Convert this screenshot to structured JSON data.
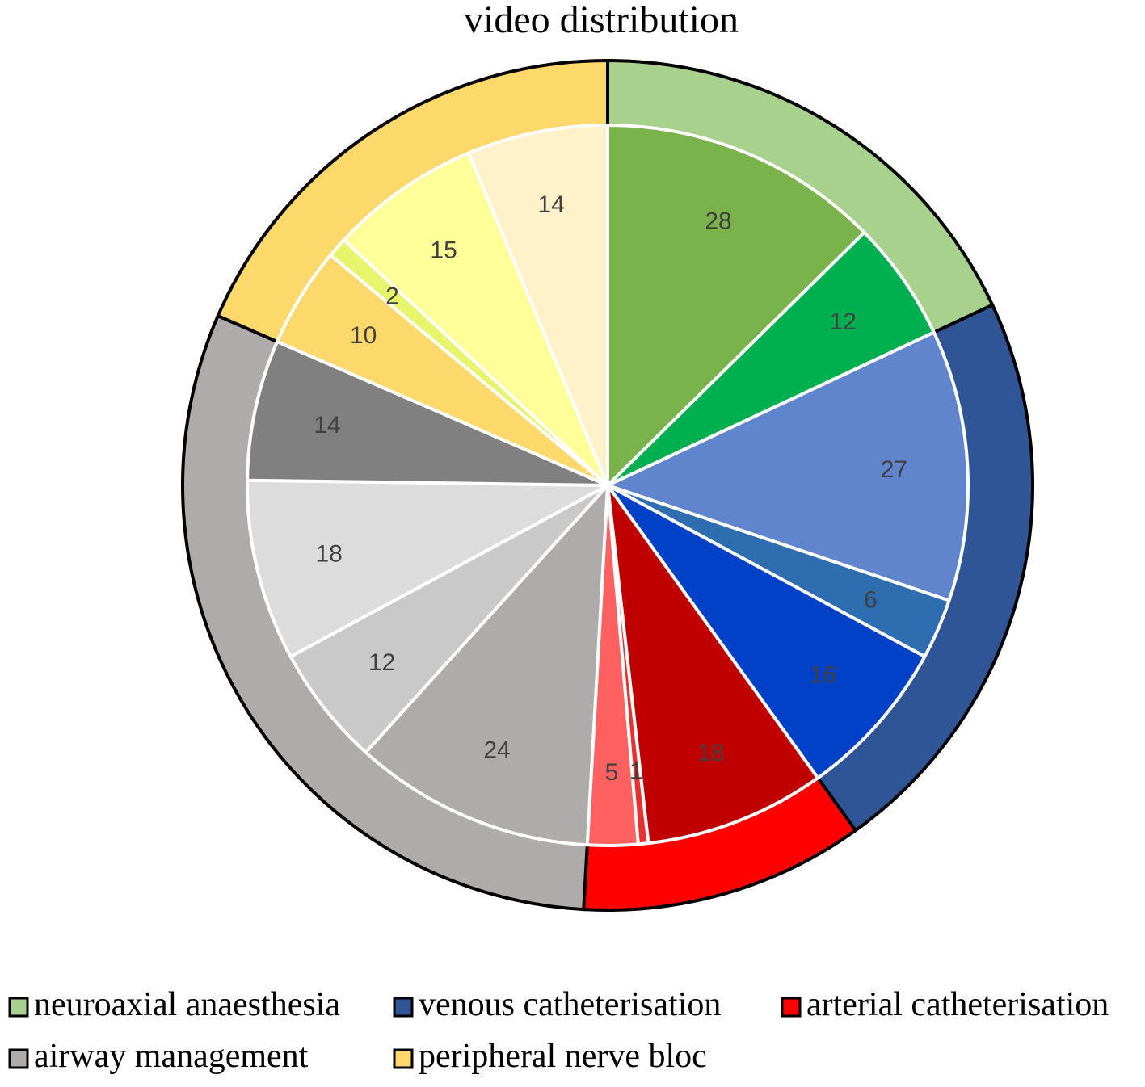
{
  "chart_data": {
    "type": "pie",
    "title": "video distribution",
    "groups": [
      {
        "name": "neuroaxial anaesthesia",
        "color": "#a9d18e",
        "slices": [
          {
            "value": 28,
            "color": "#7ab34b"
          },
          {
            "value": 12,
            "color": "#00b050"
          }
        ]
      },
      {
        "name": "venous catheterisation",
        "color": "#2f5597",
        "slices": [
          {
            "value": 27,
            "color": "#6085cc"
          },
          {
            "value": 6,
            "color": "#2e6daf"
          },
          {
            "value": 16,
            "color": "#0041c7"
          }
        ]
      },
      {
        "name": "arterial catheterisation",
        "color": "#ff0000",
        "slices": [
          {
            "value": 18,
            "color": "#c00000"
          },
          {
            "value": 1,
            "color": "#e83030"
          },
          {
            "value": 5,
            "color": "#ff6161"
          }
        ]
      },
      {
        "name": "airway management",
        "color": "#afabab",
        "slices": [
          {
            "value": 24,
            "color": "#afabab"
          },
          {
            "value": 12,
            "color": "#c9c9c9"
          },
          {
            "value": 18,
            "color": "#dcdcdc"
          },
          {
            "value": 14,
            "color": "#808080"
          }
        ]
      },
      {
        "name": "peripheral nerve bloc",
        "color": "#fdd96b",
        "slices": [
          {
            "value": 10,
            "color": "#fdd96b"
          },
          {
            "value": 2,
            "color": "#e6f56b"
          },
          {
            "value": 15,
            "color": "#ffff99"
          },
          {
            "value": 14,
            "color": "#fff1c9"
          }
        ]
      }
    ],
    "legend_position": "bottom"
  }
}
